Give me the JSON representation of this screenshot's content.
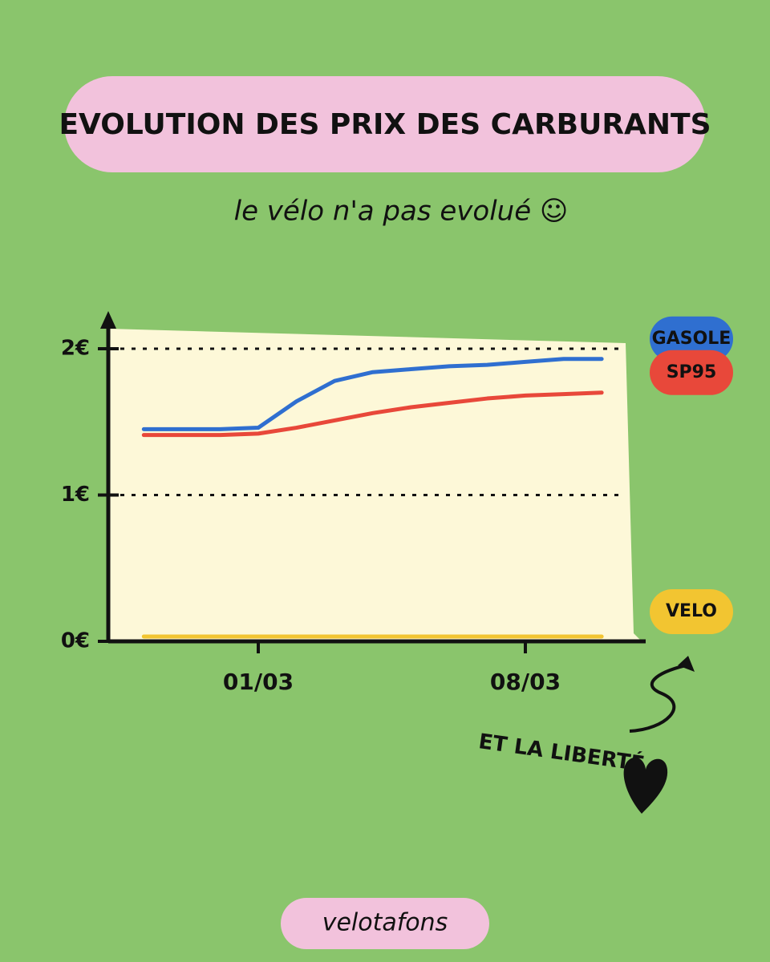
{
  "chart_data": {
    "type": "line",
    "title": "EVOLUTION DES PRIX DES CARBURANTS",
    "subtitle": "le vélo n'a pas evolué ☺",
    "annotation": "ET LA LIBERTÉ",
    "footer": "velotafons",
    "categories": [
      null,
      null,
      null,
      "01/03",
      null,
      null,
      null,
      null,
      null,
      null,
      "08/03",
      null,
      null
    ],
    "series": [
      {
        "name": "GASOLE",
        "color": "#2f6fd0",
        "values": [
          1.45,
          1.45,
          1.45,
          1.46,
          1.64,
          1.78,
          1.84,
          1.86,
          1.88,
          1.89,
          1.91,
          1.93,
          1.93
        ]
      },
      {
        "name": "SP95",
        "color": "#e8483a",
        "values": [
          1.41,
          1.41,
          1.41,
          1.42,
          1.46,
          1.51,
          1.56,
          1.6,
          1.63,
          1.66,
          1.68,
          1.69,
          1.7
        ]
      },
      {
        "name": "VELO",
        "color": "#f2c531",
        "values": [
          0,
          0,
          0,
          0,
          0,
          0,
          0,
          0,
          0,
          0,
          0,
          0,
          0
        ]
      }
    ],
    "ylim": [
      0,
      2
    ],
    "yticks": [
      {
        "value": 0,
        "label": "0€"
      },
      {
        "value": 1,
        "label": "1€"
      },
      {
        "value": 2,
        "label": "2€"
      }
    ],
    "grid": true
  }
}
